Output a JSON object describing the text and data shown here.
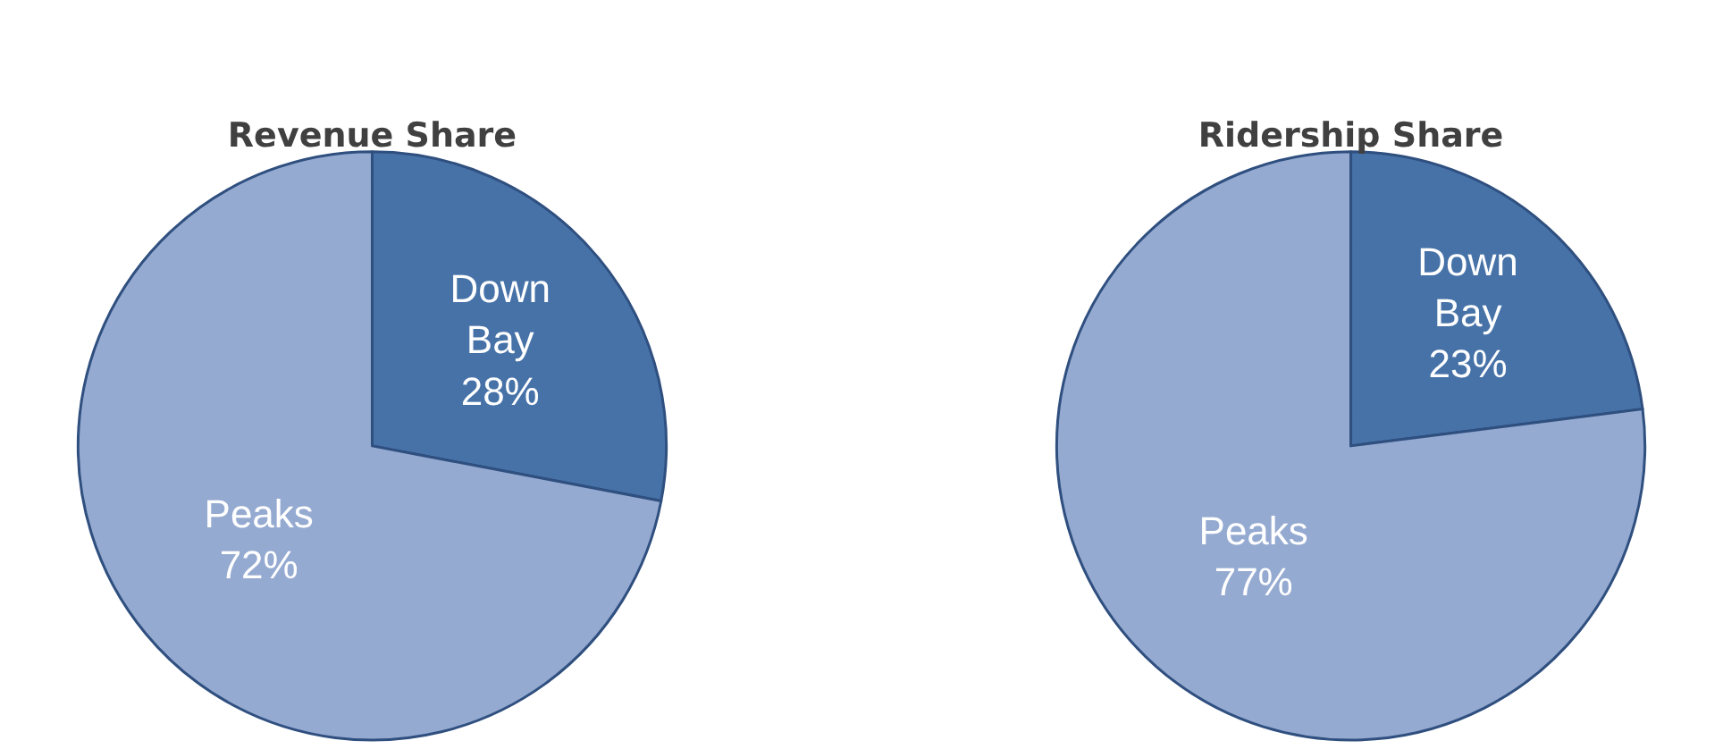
{
  "chart_data": [
    {
      "type": "pie",
      "title": "Revenue Share",
      "categories": [
        "Down Bay",
        "Peaks"
      ],
      "values": [
        28,
        72
      ],
      "colors": [
        "#4672a8",
        "#95aad1"
      ],
      "value_labels": [
        "28%",
        "72%"
      ]
    },
    {
      "type": "pie",
      "title": "Ridership Share",
      "categories": [
        "Down Bay",
        "Peaks"
      ],
      "values": [
        23,
        77
      ],
      "colors": [
        "#4672a8",
        "#95aad1"
      ],
      "value_labels": [
        "23%",
        "77%"
      ]
    }
  ]
}
